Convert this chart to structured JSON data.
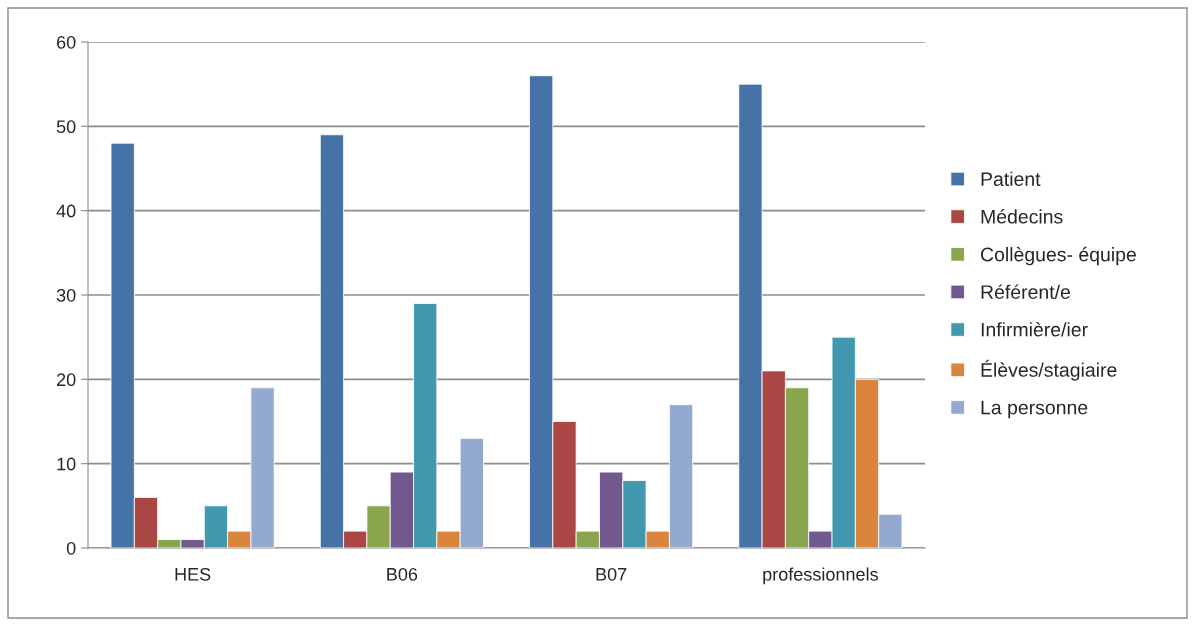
{
  "chart_data": {
    "type": "bar",
    "categories": [
      "HES",
      "B06",
      "B07",
      "professionnels"
    ],
    "series": [
      {
        "name": "Patient",
        "color": "#4572a7",
        "values": [
          48,
          49,
          56,
          55
        ]
      },
      {
        "name": "Médecins",
        "color": "#aa4643",
        "values": [
          6,
          2,
          15,
          21
        ]
      },
      {
        "name": "Collègues- équipe",
        "color": "#89a54e",
        "values": [
          1,
          5,
          2,
          19
        ]
      },
      {
        "name": "Référent/e",
        "color": "#71588f",
        "values": [
          1,
          9,
          9,
          2
        ]
      },
      {
        "name": "Infirmière/ier",
        "color": "#4198af",
        "values": [
          5,
          29,
          8,
          25
        ]
      },
      {
        "name": "Élèves/stagiaire",
        "color": "#db843d",
        "values": [
          2,
          2,
          2,
          20
        ]
      },
      {
        "name": "La personne",
        "color": "#93a9cf",
        "values": [
          19,
          13,
          17,
          4
        ]
      }
    ],
    "ylim": [
      0,
      60
    ],
    "yticks": [
      0,
      10,
      20,
      30,
      40,
      50,
      60
    ],
    "grid": "y",
    "legend": "right"
  }
}
